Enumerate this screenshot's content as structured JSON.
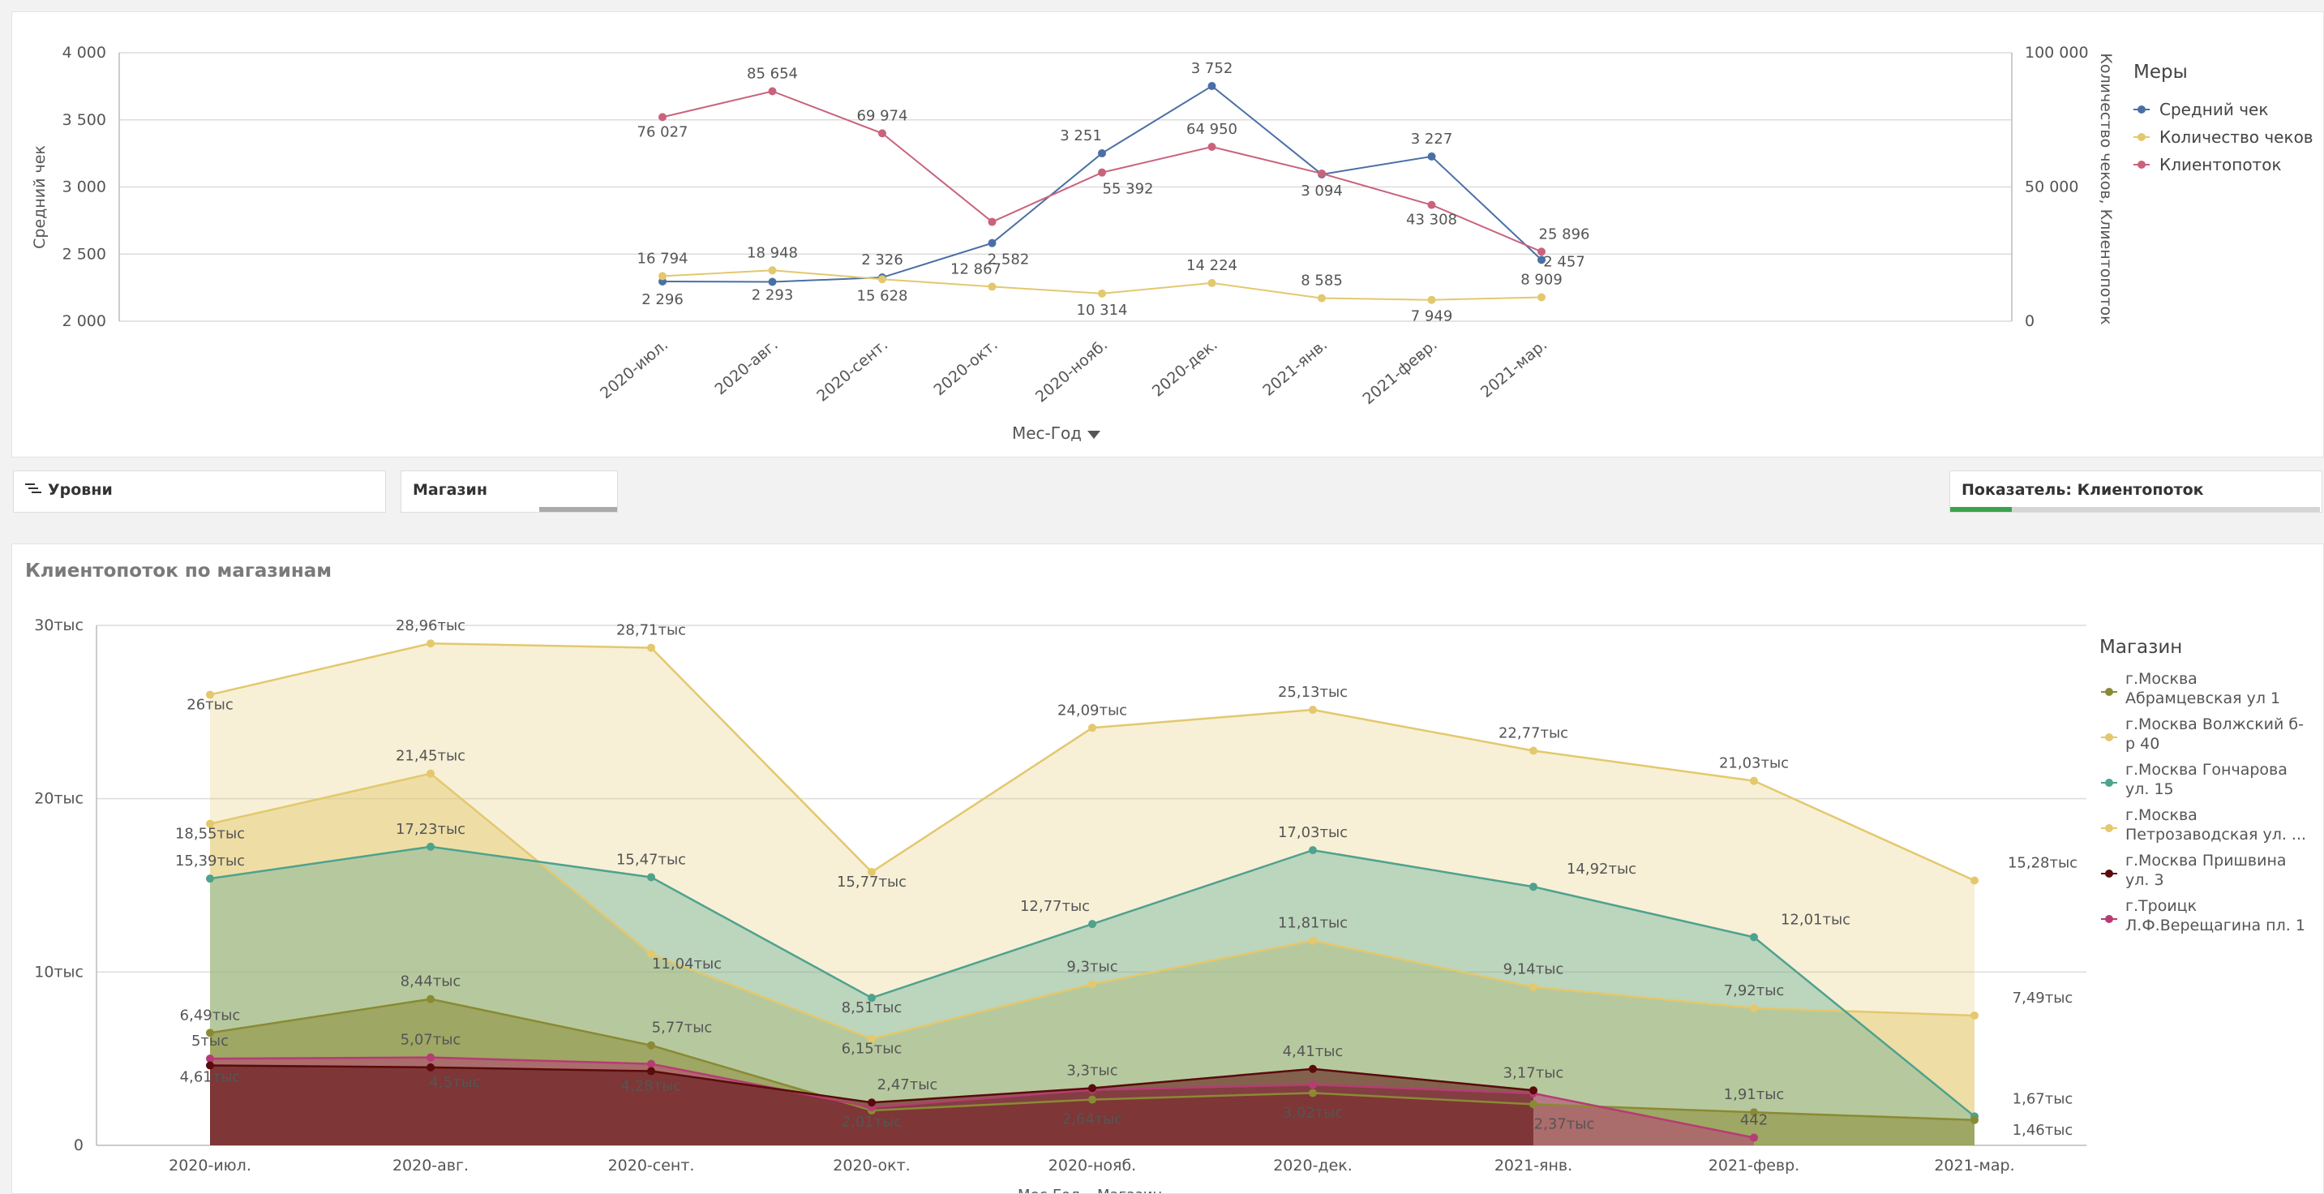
{
  "top_chart": {
    "left_axis_label": "Средний чек",
    "right_axis_label": "Количество чеков, Клиентопоток",
    "x_dimension_label": "Мес-Год",
    "legend_title": "Меры",
    "left_ticks": [
      "4 000",
      "3 500",
      "3 000",
      "2 500",
      "2 000"
    ],
    "right_ticks": [
      "100 000",
      "50 000",
      "0"
    ]
  },
  "filters": {
    "levels_label": "Уровни",
    "store_label": "Магазин",
    "indicator_label": "Показатель: Клиентопоток"
  },
  "bottom_panel": {
    "title": "Клиентопоток по магазинам",
    "legend_title": "Магазин",
    "y_ticks": [
      "30тыс",
      "20тыс",
      "10тыс",
      "0"
    ],
    "footer_dim1": "Мес-Год",
    "footer_dim2": "Магазин"
  },
  "colors": {
    "blue": "#4a6fa5",
    "yellow": "#e3c86d",
    "pink": "#c9637c",
    "olive": "#8a8a34",
    "teal": "#4ea28e",
    "darkred": "#5a0b0b",
    "magenta": "#b63c73",
    "green": "#3aa24a"
  },
  "chart_data": [
    {
      "type": "line",
      "title": "",
      "categories": [
        "2020-июл.",
        "2020-авг.",
        "2020-сент.",
        "2020-окт.",
        "2020-нояб.",
        "2020-дек.",
        "2021-янв.",
        "2021-февр.",
        "2021-мар."
      ],
      "xlabel": "Мес-Год",
      "ylabel": "Средний чек",
      "y2label": "Количество чеков, Клиентопоток",
      "ylim": [
        2000,
        4000
      ],
      "y2lim": [
        0,
        100000
      ],
      "series": [
        {
          "name": "Средний чек",
          "axis": "left",
          "color": "#4a6fa5",
          "values": [
            2296,
            2293,
            2326,
            2582,
            3251,
            3752,
            3094,
            3227,
            2457
          ],
          "labels": [
            "2 296",
            "2 293",
            "2 326",
            "2 582",
            "3 251",
            "3 752",
            "3 094",
            "3 227",
            "2 457"
          ]
        },
        {
          "name": "Количество чеков",
          "axis": "right",
          "color": "#e3c86d",
          "values": [
            16794,
            18948,
            15628,
            12867,
            10314,
            14224,
            8585,
            7949,
            8909
          ],
          "labels": [
            "16 794",
            "18 948",
            "15 628",
            "12 867",
            "10 314",
            "14 224",
            "8 585",
            "7 949",
            "8 909"
          ]
        },
        {
          "name": "Клиентопоток",
          "axis": "right",
          "color": "#c9637c",
          "values": [
            76027,
            85654,
            69974,
            37000,
            55392,
            64950,
            55000,
            43308,
            25896
          ],
          "labels": [
            "76 027",
            "85 654",
            "69 974",
            "",
            "55 392",
            "64 950",
            "",
            "43 308",
            "25 896"
          ]
        }
      ]
    },
    {
      "type": "area",
      "title": "Клиентопоток по магазинам",
      "categories": [
        "2020-июл.",
        "2020-авг.",
        "2020-сент.",
        "2020-окт.",
        "2020-нояб.",
        "2020-дек.",
        "2021-янв.",
        "2021-февр.",
        "2021-мар."
      ],
      "xlabel": "Мес-Год",
      "ylabel": "",
      "ylim": [
        0,
        30000
      ],
      "series": [
        {
          "name": "г.Москва Волжский б-р 40",
          "color": "#e3c86d",
          "values": [
            26000,
            28960,
            28710,
            15770,
            24090,
            25130,
            22770,
            21030,
            15280
          ],
          "labels": [
            "26тыс",
            "28,96тыс",
            "28,71тыс",
            "15,77тыс",
            "24,09тыс",
            "25,13тыс",
            "22,77тыс",
            "21,03тыс",
            "15,28тыс"
          ]
        },
        {
          "name": "г.Москва Петрозаводская ул. ...",
          "color": "#e3c86d",
          "values": [
            18550,
            21450,
            11040,
            6150,
            9300,
            11810,
            9140,
            7920,
            7490
          ],
          "labels": [
            "18,55тыс",
            "21,45тыс",
            "11,04тыс",
            "6,15тыс",
            "9,3тыс",
            "11,81тыс",
            "9,14тыс",
            "7,92тыс",
            "7,49тыс"
          ]
        },
        {
          "name": "г.Москва Гончарова ул. 15",
          "color": "#4ea28e",
          "values": [
            15390,
            17230,
            15470,
            8510,
            12770,
            17030,
            14920,
            12010,
            1670
          ],
          "labels": [
            "15,39тыс",
            "17,23тыс",
            "15,47тыс",
            "8,51тыс",
            "12,77тыс",
            "17,03тыс",
            "14,92тыс",
            "12,01тыс",
            "1,67тыс"
          ]
        },
        {
          "name": "г.Москва Абрамцевская ул 1",
          "color": "#8a8a34",
          "values": [
            6490,
            8440,
            5770,
            2010,
            2640,
            3020,
            2370,
            1910,
            1460
          ],
          "labels": [
            "6,49тыс",
            "8,44тыс",
            "5,77тыс",
            "2,01тыс",
            "2,64тыс",
            "3,02тыс",
            "2,37тыс",
            "1,91тыс",
            "1,46тыс"
          ]
        },
        {
          "name": "г.Троицк Л.Ф.Верещагина пл. 1",
          "color": "#b63c73",
          "values": [
            5000,
            5070,
            4700,
            2200,
            3200,
            3500,
            3000,
            442,
            null
          ],
          "labels": [
            "5тыс",
            "5,07тыс",
            "",
            "",
            "",
            "",
            "",
            "442",
            ""
          ]
        },
        {
          "name": "г.Москва Пришвина ул. 3",
          "color": "#5a0b0b",
          "values": [
            4610,
            4500,
            4280,
            2470,
            3300,
            4410,
            3170,
            null,
            null
          ],
          "labels": [
            "4,61тыс",
            "4,5тыс",
            "4,28тыс",
            "2,47тыс",
            "3,3тыс",
            "4,41тыс",
            "3,17тыс",
            "",
            ""
          ]
        }
      ],
      "legend": [
        {
          "lines": [
            "г.Москва",
            "Абрамцевская ул  1"
          ],
          "color": "#8a8a34"
        },
        {
          "lines": [
            "г.Москва  Волжский б-",
            "р  40"
          ],
          "color": "#e3c86d"
        },
        {
          "lines": [
            "г.Москва  Гончарова",
            "ул.  15"
          ],
          "color": "#4ea28e"
        },
        {
          "lines": [
            "г.Москва",
            "Петрозаводская ул. ..."
          ],
          "color": "#e3c86d"
        },
        {
          "lines": [
            "г.Москва  Пришвина",
            "ул.  3"
          ],
          "color": "#5a0b0b"
        },
        {
          "lines": [
            "г.Троицк",
            "Л.Ф.Верещагина пл.  1"
          ],
          "color": "#b63c73"
        }
      ]
    }
  ]
}
